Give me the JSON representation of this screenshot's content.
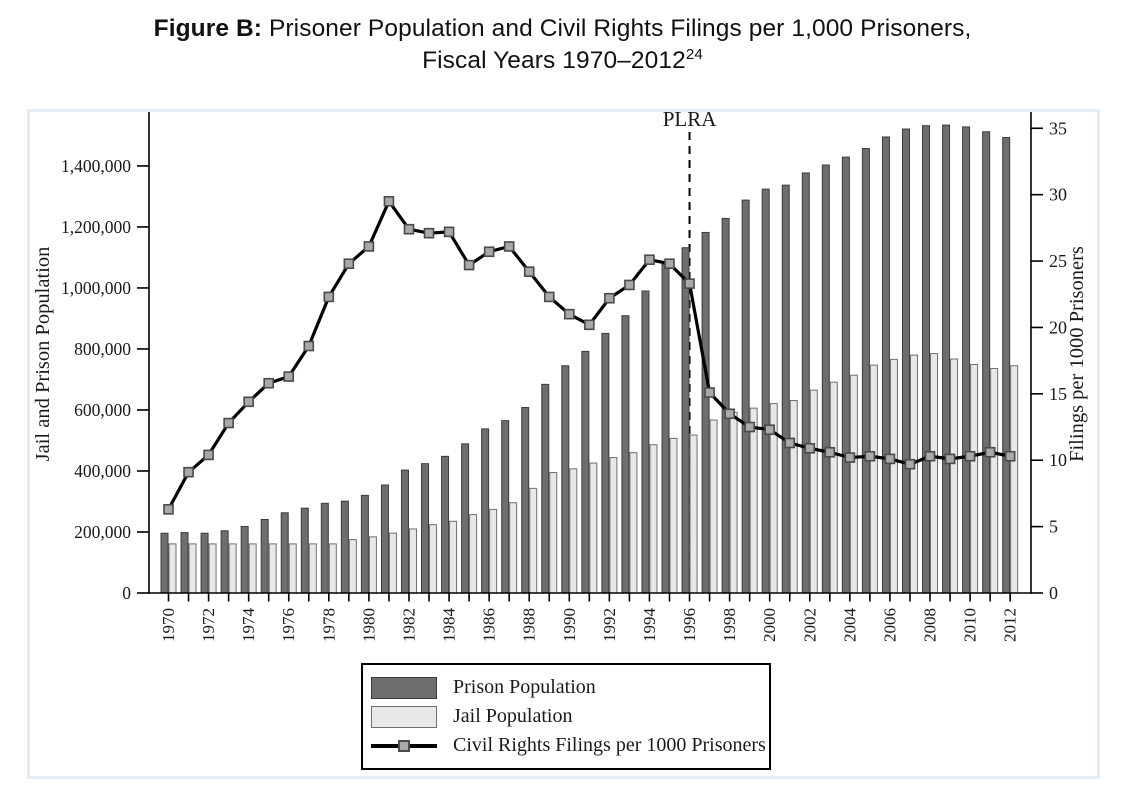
{
  "figure": {
    "title_bold": "Figure B:",
    "title_rest": " Prisoner Population and Civil Rights Filings per 1,000 Prisoners,",
    "title_line2": "Fiscal Years 1970–2012",
    "title_footnote": "24"
  },
  "chart_data": {
    "type": "bar",
    "subtype": "grouped-bars-with-line-overlay-dual-axis",
    "title": "Figure B: Prisoner Population and Civil Rights Filings per 1,000 Prisoners, Fiscal Years 1970-2012",
    "x": [
      1970,
      1971,
      1972,
      1973,
      1974,
      1975,
      1976,
      1977,
      1978,
      1979,
      1980,
      1981,
      1982,
      1983,
      1984,
      1985,
      1986,
      1987,
      1988,
      1989,
      1990,
      1991,
      1992,
      1993,
      1994,
      1995,
      1996,
      1997,
      1998,
      1999,
      2000,
      2001,
      2002,
      2003,
      2004,
      2005,
      2006,
      2007,
      2008,
      2009,
      2010,
      2011,
      2012
    ],
    "x_tick_labels": [
      "1970",
      "1972",
      "1974",
      "1976",
      "1978",
      "1980",
      "1982",
      "1984",
      "1986",
      "1988",
      "1990",
      "1992",
      "1994",
      "1996",
      "1998",
      "2000",
      "2002",
      "2004",
      "2006",
      "2008",
      "2010",
      "2012"
    ],
    "series": [
      {
        "name": "Prison Population",
        "type": "bar",
        "axis": "left",
        "fill": "#6e6e6e",
        "stroke": "#3c3c3c",
        "values": [
          196000,
          198000,
          196000,
          204000,
          218000,
          241000,
          263000,
          278000,
          294000,
          301000,
          320000,
          354000,
          403000,
          424000,
          448000,
          489000,
          538000,
          565000,
          608000,
          684000,
          745000,
          792000,
          851000,
          909000,
          990000,
          1078000,
          1132000,
          1182000,
          1228000,
          1288000,
          1324000,
          1337000,
          1377000,
          1403000,
          1429000,
          1457000,
          1495000,
          1521000,
          1532000,
          1534000,
          1528000,
          1512000,
          1493000
        ]
      },
      {
        "name": "Jail Population",
        "type": "bar",
        "axis": "left",
        "fill": "#e8e8e8",
        "stroke": "#707070",
        "values": [
          161000,
          161000,
          161000,
          161000,
          161000,
          161000,
          161000,
          161000,
          161000,
          175000,
          184000,
          196000,
          210000,
          224000,
          235000,
          257000,
          274000,
          296000,
          343000,
          395000,
          407000,
          426000,
          444000,
          460000,
          486000,
          507000,
          518000,
          567000,
          592000,
          606000,
          621000,
          631000,
          665000,
          691000,
          714000,
          747000,
          766000,
          780000,
          785000,
          767000,
          749000,
          736000,
          745000
        ]
      },
      {
        "name": "Civil Rights Filings per 1000 Prisoners",
        "type": "line",
        "axis": "right",
        "color": "#000000",
        "marker": "square",
        "marker_fill": "#a9a9a9",
        "marker_stroke": "#4a4a4a",
        "values": [
          6.3,
          9.1,
          10.4,
          12.8,
          14.4,
          15.8,
          16.3,
          18.6,
          22.3,
          24.8,
          26.1,
          29.5,
          27.4,
          27.1,
          27.2,
          24.7,
          25.7,
          26.1,
          24.2,
          22.3,
          21.0,
          20.2,
          22.2,
          23.2,
          25.1,
          24.8,
          23.3,
          15.1,
          13.5,
          12.5,
          12.3,
          11.3,
          10.9,
          10.6,
          10.2,
          10.3,
          10.1,
          9.7,
          10.3,
          10.1,
          10.3,
          10.6,
          10.3
        ]
      }
    ],
    "left_axis": {
      "label": "Jail and Prison Population",
      "ticks": [
        0,
        200000,
        400000,
        600000,
        800000,
        1000000,
        1200000,
        1400000
      ],
      "range": [
        0,
        1567000
      ]
    },
    "right_axis": {
      "label": "Filings per 1000 Prisoners",
      "ticks": [
        0,
        5,
        10,
        15,
        20,
        25,
        30,
        35
      ],
      "range": [
        0,
        36
      ]
    },
    "annotation": {
      "label": "PLRA",
      "x": 1996
    },
    "grid": false,
    "legend_position": "bottom-center"
  }
}
